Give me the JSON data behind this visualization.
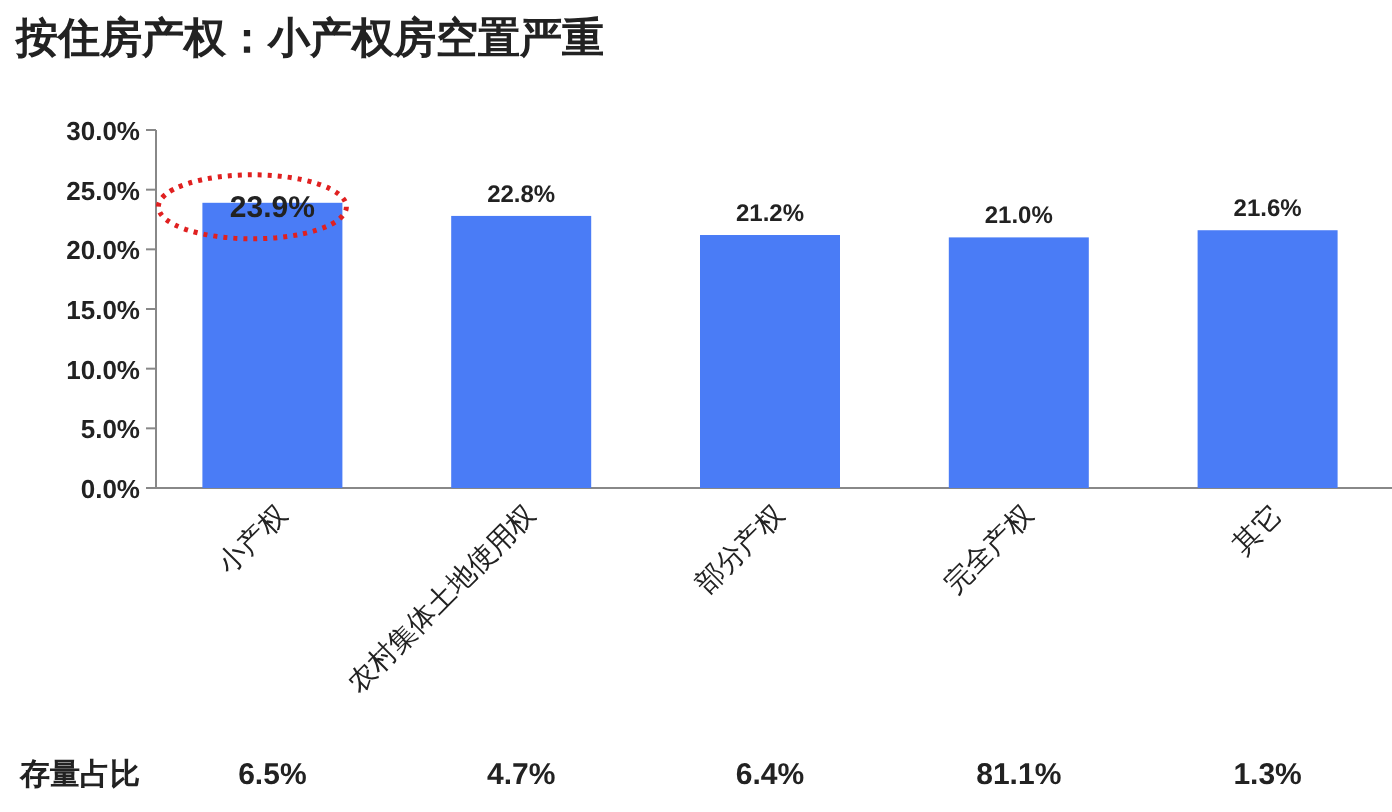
{
  "chart_data": {
    "type": "bar",
    "title": "按住房产权：小产权房空置严重",
    "categories": [
      "小产权",
      "农村集体土地使用权",
      "部分产权",
      "完全产权",
      "其它"
    ],
    "values": [
      23.9,
      22.8,
      21.2,
      21.0,
      21.6
    ],
    "value_labels": [
      "23.9%",
      "22.8%",
      "21.2%",
      "21.0%",
      "21.6%"
    ],
    "color": "#4a7cf6",
    "ylim": [
      0,
      30
    ],
    "yticks": [
      {
        "value": 0,
        "label": "0.0%"
      },
      {
        "value": 5,
        "label": "5.0%"
      },
      {
        "value": 10,
        "label": "10.0%"
      },
      {
        "value": 15,
        "label": "15.0%"
      },
      {
        "value": 20,
        "label": "20.0%"
      },
      {
        "value": 25,
        "label": "25.0%"
      },
      {
        "value": 30,
        "label": "30.0%"
      }
    ],
    "annotations": [
      "存量占比",
      "6.5%",
      "4.7%",
      "6.4%",
      "81.1%",
      "1.3%"
    ]
  }
}
